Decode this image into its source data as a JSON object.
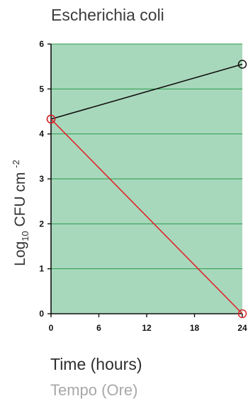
{
  "chart_data": {
    "type": "line",
    "title": "Escherichia coli",
    "xlabel": "Time (hours)",
    "xlabel_secondary": "Tempo (Ore)",
    "ylabel": {
      "prefix": "Log",
      "subscript": "10",
      "main": " CFU cm ",
      "superscript": "-2"
    },
    "x_ticks": [
      0,
      6,
      12,
      18,
      24
    ],
    "y_ticks": [
      0,
      1,
      2,
      3,
      4,
      5,
      6
    ],
    "xlim": [
      0,
      24
    ],
    "ylim": [
      0,
      6
    ],
    "grid": "horizontal",
    "plot_background": "#a8d8bc",
    "grid_color": "#2a9a4a",
    "series": [
      {
        "color": "#111111",
        "x": [
          0,
          24
        ],
        "y": [
          4.33,
          5.55
        ]
      },
      {
        "color": "#e0242a",
        "x": [
          0,
          24
        ],
        "y": [
          4.33,
          0
        ]
      }
    ]
  }
}
